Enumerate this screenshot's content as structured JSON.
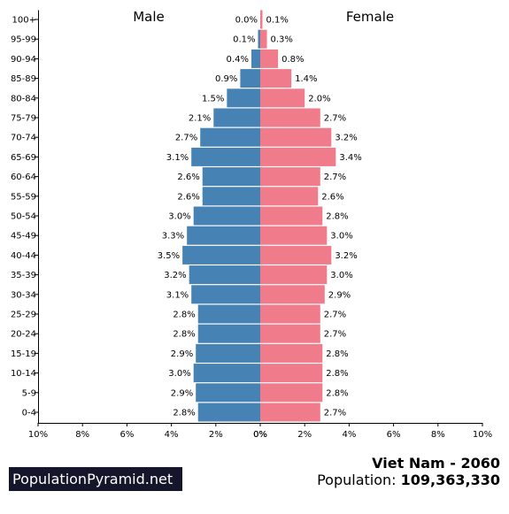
{
  "chart_data": {
    "type": "bar",
    "orientation": "horizontal-population-pyramid",
    "categories": [
      "0-4",
      "5-9",
      "10-14",
      "15-19",
      "20-24",
      "25-29",
      "30-34",
      "35-39",
      "40-44",
      "45-49",
      "50-54",
      "55-59",
      "60-64",
      "65-69",
      "70-74",
      "75-79",
      "80-84",
      "85-89",
      "90-94",
      "95-99",
      "100+"
    ],
    "series": [
      {
        "name": "Male",
        "color": "#4682b4",
        "values": [
          2.8,
          2.9,
          3.0,
          2.9,
          2.8,
          2.8,
          3.1,
          3.2,
          3.5,
          3.3,
          3.0,
          2.6,
          2.6,
          3.1,
          2.7,
          2.1,
          1.5,
          0.9,
          0.4,
          0.1,
          0.0
        ],
        "labels": [
          "2.8%",
          "2.9%",
          "3.0%",
          "2.9%",
          "2.8%",
          "2.8%",
          "3.1%",
          "3.2%",
          "3.5%",
          "3.3%",
          "3.0%",
          "2.6%",
          "2.6%",
          "3.1%",
          "2.7%",
          "2.1%",
          "1.5%",
          "0.9%",
          "0.4%",
          "0.1%",
          "0.0%"
        ]
      },
      {
        "name": "Female",
        "color": "#f07b8a",
        "values": [
          2.7,
          2.8,
          2.8,
          2.8,
          2.7,
          2.7,
          2.9,
          3.0,
          3.2,
          3.0,
          2.8,
          2.6,
          2.7,
          3.4,
          3.2,
          2.7,
          2.0,
          1.4,
          0.8,
          0.3,
          0.1
        ],
        "labels": [
          "2.7%",
          "2.8%",
          "2.8%",
          "2.8%",
          "2.7%",
          "2.7%",
          "2.9%",
          "3.0%",
          "3.2%",
          "3.0%",
          "2.8%",
          "2.6%",
          "2.7%",
          "3.4%",
          "3.2%",
          "2.7%",
          "2.0%",
          "1.4%",
          "0.8%",
          "0.3%",
          "0.1%"
        ]
      }
    ],
    "xlim": [
      0,
      10
    ],
    "x_ticks": [
      10,
      8,
      6,
      4,
      2,
      0
    ],
    "x_tick_labels_left": [
      "10%",
      "8%",
      "6%",
      "4%",
      "2%",
      "0%"
    ],
    "x_tick_labels_right": [
      "0%",
      "2%",
      "4%",
      "6%",
      "8%",
      "10%"
    ],
    "grid": false
  },
  "branding": {
    "site": "PopulationPyramid.net"
  },
  "footer": {
    "country_year": "Viet Nam - 2060",
    "population_label": "Population:",
    "population_value": "109,363,330"
  }
}
